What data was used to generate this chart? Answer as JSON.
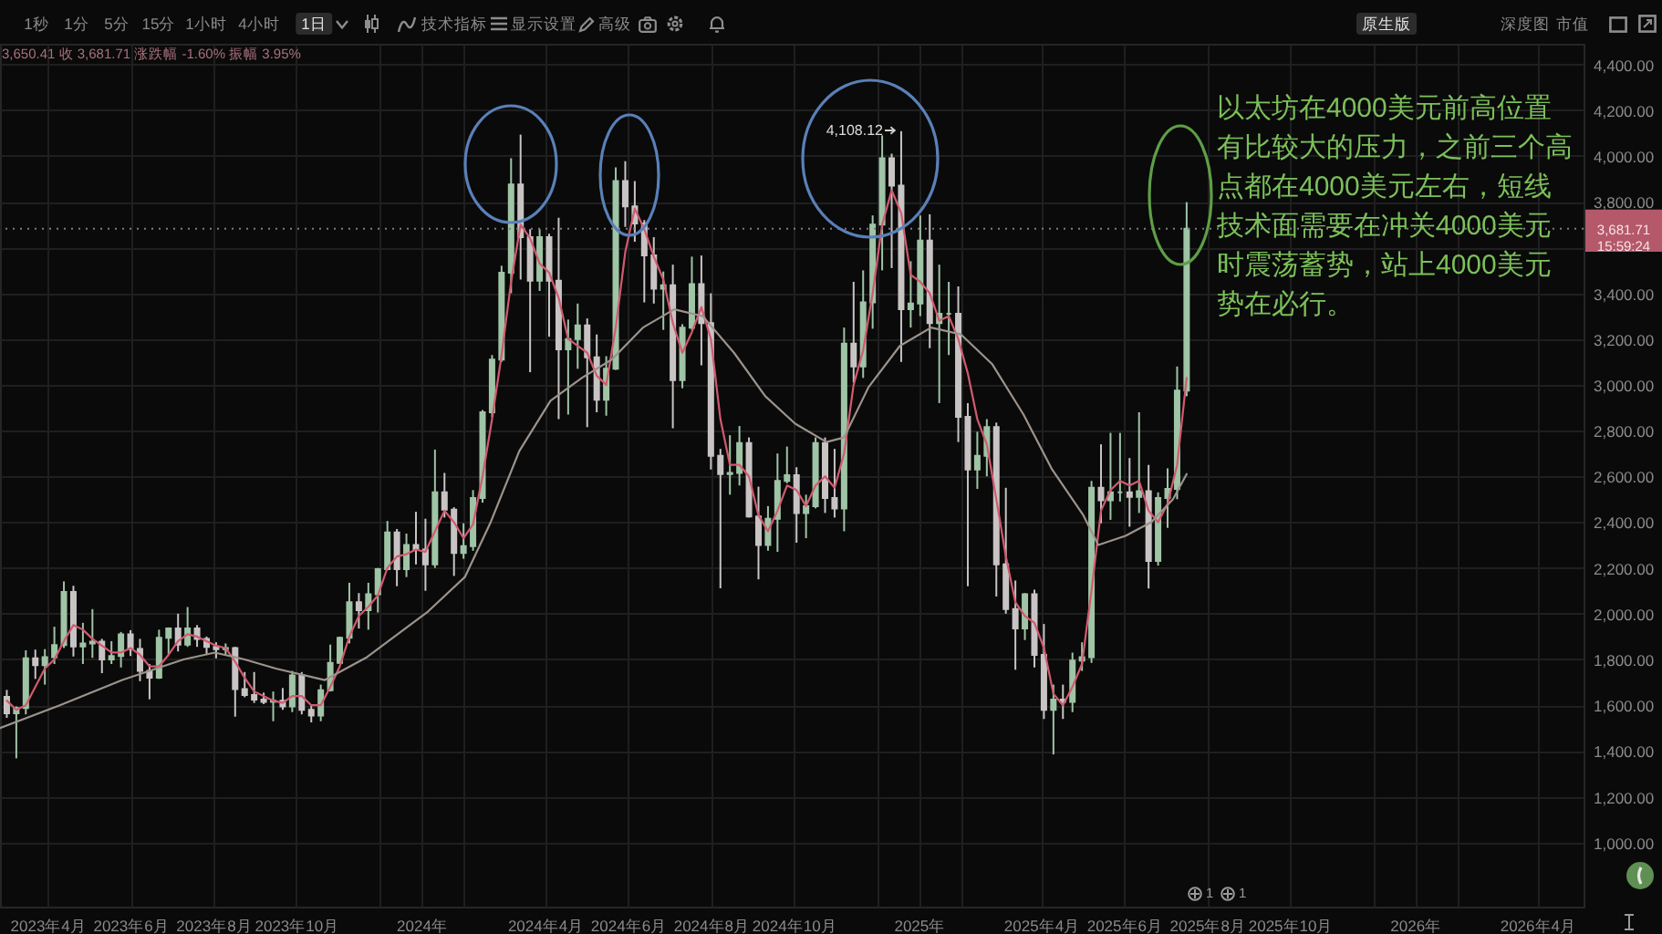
{
  "chart_data": {
    "type": "candlestick",
    "x": [
      "2023-03-02",
      "2023-03-09",
      "2023-03-16",
      "2023-03-23",
      "2023-03-30",
      "2023-04-06",
      "2023-04-13",
      "2023-04-20",
      "2023-04-27",
      "2023-05-04",
      "2023-05-11",
      "2023-05-18",
      "2023-05-25",
      "2023-06-01",
      "2023-06-08",
      "2023-06-15",
      "2023-06-22",
      "2023-06-29",
      "2023-07-06",
      "2023-07-13",
      "2023-07-20",
      "2023-07-27",
      "2023-08-03",
      "2023-08-10",
      "2023-08-17",
      "2023-08-24",
      "2023-08-31",
      "2023-09-07",
      "2023-09-14",
      "2023-09-21",
      "2023-09-28",
      "2023-10-05",
      "2023-10-12",
      "2023-10-19",
      "2023-10-26",
      "2023-11-02",
      "2023-11-09",
      "2023-11-16",
      "2023-11-23",
      "2023-11-30",
      "2023-12-07",
      "2023-12-14",
      "2023-12-21",
      "2023-12-28",
      "2024-01-04",
      "2024-01-11",
      "2024-01-18",
      "2024-01-25",
      "2024-02-01",
      "2024-02-08",
      "2024-02-15",
      "2024-02-22",
      "2024-02-29",
      "2024-03-07",
      "2024-03-14",
      "2024-03-21",
      "2024-03-28",
      "2024-04-04",
      "2024-04-11",
      "2024-04-18",
      "2024-04-25",
      "2024-05-02",
      "2024-05-09",
      "2024-05-16",
      "2024-05-23",
      "2024-05-30",
      "2024-06-06",
      "2024-06-13",
      "2024-06-20",
      "2024-06-27",
      "2024-07-04",
      "2024-07-11",
      "2024-07-18",
      "2024-07-25",
      "2024-08-01",
      "2024-08-08",
      "2024-08-15",
      "2024-08-22",
      "2024-08-29",
      "2024-09-05",
      "2024-09-12",
      "2024-09-19",
      "2024-09-26",
      "2024-10-03",
      "2024-10-10",
      "2024-10-17",
      "2024-10-24",
      "2024-10-31",
      "2024-11-07",
      "2024-11-14",
      "2024-11-21",
      "2024-11-28",
      "2024-12-05",
      "2024-12-12",
      "2024-12-19",
      "2024-12-26",
      "2025-01-02",
      "2025-01-09",
      "2025-01-16",
      "2025-01-23",
      "2025-01-30",
      "2025-02-06",
      "2025-02-13",
      "2025-02-20",
      "2025-02-27",
      "2025-03-06",
      "2025-03-13",
      "2025-03-20",
      "2025-03-27",
      "2025-04-03",
      "2025-04-10",
      "2025-04-17",
      "2025-04-24",
      "2025-05-01",
      "2025-05-08",
      "2025-05-15",
      "2025-05-22",
      "2025-05-29",
      "2025-06-05",
      "2025-06-12",
      "2025-06-19",
      "2025-06-26",
      "2025-07-03",
      "2025-07-10",
      "2025-07-17"
    ],
    "ohlc": [
      [
        1637,
        1667,
        1545,
        1565
      ],
      [
        1565,
        1595,
        1368,
        1588
      ],
      [
        1588,
        1840,
        1560,
        1805
      ],
      [
        1805,
        1843,
        1715,
        1775
      ],
      [
        1775,
        1845,
        1690,
        1810
      ],
      [
        1810,
        1943,
        1780,
        1863
      ],
      [
        1863,
        2141,
        1850,
        2095
      ],
      [
        2095,
        2122,
        1813,
        1857
      ],
      [
        1857,
        1960,
        1780,
        1870
      ],
      [
        1870,
        2020,
        1807,
        1878
      ],
      [
        1878,
        1890,
        1740,
        1800
      ],
      [
        1800,
        1880,
        1780,
        1815
      ],
      [
        1815,
        1920,
        1765,
        1910
      ],
      [
        1910,
        1928,
        1815,
        1846
      ],
      [
        1846,
        1890,
        1705,
        1750
      ],
      [
        1750,
        1780,
        1626,
        1720
      ],
      [
        1720,
        1930,
        1715,
        1895
      ],
      [
        1895,
        1940,
        1820,
        1935
      ],
      [
        1935,
        2000,
        1835,
        1865
      ],
      [
        1865,
        2029,
        1855,
        1935
      ],
      [
        1935,
        1950,
        1855,
        1890
      ],
      [
        1890,
        1900,
        1820,
        1855
      ],
      [
        1855,
        1875,
        1805,
        1845
      ],
      [
        1845,
        1870,
        1820,
        1850
      ],
      [
        1850,
        1855,
        1550,
        1670
      ],
      [
        1670,
        1745,
        1635,
        1645
      ],
      [
        1645,
        1745,
        1610,
        1625
      ],
      [
        1625,
        1655,
        1605,
        1615
      ],
      [
        1615,
        1660,
        1530,
        1620
      ],
      [
        1620,
        1675,
        1580,
        1595
      ],
      [
        1595,
        1750,
        1570,
        1730
      ],
      [
        1730,
        1745,
        1560,
        1580
      ],
      [
        1580,
        1600,
        1525,
        1555
      ],
      [
        1555,
        1690,
        1530,
        1665
      ],
      [
        1665,
        1865,
        1660,
        1785
      ],
      [
        1785,
        1900,
        1780,
        1895
      ],
      [
        1895,
        2135,
        1870,
        2050
      ],
      [
        2050,
        2090,
        1935,
        2015
      ],
      [
        2015,
        2135,
        1930,
        2085
      ],
      [
        2085,
        2200,
        2005,
        2195
      ],
      [
        2195,
        2405,
        2190,
        2355
      ],
      [
        2355,
        2370,
        2120,
        2195
      ],
      [
        2195,
        2350,
        2160,
        2300
      ],
      [
        2300,
        2445,
        2215,
        2280
      ],
      [
        2280,
        2415,
        2100,
        2215
      ],
      [
        2215,
        2717,
        2200,
        2530
      ],
      [
        2530,
        2615,
        2420,
        2455
      ],
      [
        2455,
        2465,
        2165,
        2265
      ],
      [
        2265,
        2395,
        2240,
        2295
      ],
      [
        2295,
        2540,
        2275,
        2505
      ],
      [
        2505,
        2890,
        2485,
        2880
      ],
      [
        2880,
        3130,
        2860,
        3110
      ],
      [
        3110,
        3520,
        3100,
        3490
      ],
      [
        3490,
        3990,
        3400,
        3875
      ],
      [
        3875,
        4093,
        3460,
        3645
      ],
      [
        3645,
        3680,
        3055,
        3455
      ],
      [
        3455,
        3680,
        3410,
        3645
      ],
      [
        3645,
        3660,
        3210,
        3455
      ],
      [
        3455,
        3730,
        2850,
        3155
      ],
      [
        3155,
        3285,
        2870,
        3200
      ],
      [
        3200,
        3355,
        3070,
        3260
      ],
      [
        3260,
        3290,
        2815,
        3120
      ],
      [
        3120,
        3220,
        2880,
        2935
      ],
      [
        2935,
        3125,
        2865,
        3070
      ],
      [
        3070,
        3950,
        3065,
        3890
      ],
      [
        3890,
        3977,
        3690,
        3780
      ],
      [
        3780,
        3890,
        3625,
        3705
      ],
      [
        3705,
        3720,
        3360,
        3565
      ],
      [
        3565,
        3645,
        3355,
        3420
      ],
      [
        3420,
        3495,
        3240,
        3435
      ],
      [
        3435,
        3525,
        2810,
        3020
      ],
      [
        3020,
        3265,
        2985,
        3250
      ],
      [
        3250,
        3560,
        3240,
        3440
      ],
      [
        3440,
        3565,
        3085,
        3270
      ],
      [
        3270,
        3400,
        2630,
        2690
      ],
      [
        2690,
        2720,
        2111,
        2610
      ],
      [
        2610,
        2780,
        2520,
        2615
      ],
      [
        2615,
        2820,
        2560,
        2745
      ],
      [
        2745,
        2770,
        2420,
        2425
      ],
      [
        2425,
        2555,
        2150,
        2300
      ],
      [
        2300,
        2470,
        2275,
        2415
      ],
      [
        2415,
        2700,
        2270,
        2580
      ],
      [
        2580,
        2730,
        2570,
        2605
      ],
      [
        2605,
        2640,
        2310,
        2440
      ],
      [
        2440,
        2520,
        2330,
        2470
      ],
      [
        2470,
        2770,
        2460,
        2745
      ],
      [
        2745,
        2770,
        2440,
        2505
      ],
      [
        2505,
        2720,
        2420,
        2460
      ],
      [
        2460,
        3250,
        2360,
        3180
      ],
      [
        3180,
        3450,
        3010,
        3080
      ],
      [
        3080,
        3500,
        3030,
        3360
      ],
      [
        3360,
        3740,
        3245,
        3700
      ],
      [
        3700,
        4090,
        3500,
        3990
      ],
      [
        3990,
        4010,
        3510,
        3870
      ],
      [
        3870,
        4108.12,
        3100,
        3330
      ],
      [
        3330,
        3540,
        3250,
        3355
      ],
      [
        3355,
        3740,
        3300,
        3630
      ],
      [
        3630,
        3745,
        3160,
        3270
      ],
      [
        3270,
        3525,
        2920,
        3310
      ],
      [
        3310,
        3450,
        3130,
        3310
      ],
      [
        3310,
        3430,
        2750,
        2860
      ],
      [
        2860,
        2920,
        2120,
        2630
      ],
      [
        2630,
        2795,
        2545,
        2690
      ],
      [
        2690,
        2850,
        2600,
        2815
      ],
      [
        2815,
        2835,
        2075,
        2215
      ],
      [
        2215,
        2550,
        2000,
        2020
      ],
      [
        2020,
        2145,
        1755,
        1935
      ],
      [
        1935,
        2090,
        1885,
        2085
      ],
      [
        2085,
        2105,
        1765,
        1820
      ],
      [
        1820,
        1955,
        1540,
        1580
      ],
      [
        1580,
        1690,
        1385,
        1625
      ],
      [
        1625,
        1690,
        1540,
        1615
      ],
      [
        1615,
        1830,
        1570,
        1795
      ],
      [
        1795,
        1875,
        1750,
        1810
      ],
      [
        1810,
        2580,
        1785,
        2550
      ],
      [
        2550,
        2740,
        2395,
        2495
      ],
      [
        2495,
        2790,
        2410,
        2530
      ],
      [
        2530,
        2790,
        2490,
        2530
      ],
      [
        2530,
        2680,
        2380,
        2510
      ],
      [
        2510,
        2880,
        2440,
        2535
      ],
      [
        2535,
        2650,
        2110,
        2230
      ],
      [
        2230,
        2530,
        2210,
        2505
      ],
      [
        2505,
        2635,
        2375,
        2545
      ],
      [
        2545,
        3080,
        2500,
        2975
      ],
      [
        2975,
        3798,
        2950,
        3681.71
      ]
    ],
    "colors": [
      "#c8c4c4",
      "#9fc4a6",
      "#9fc4a6",
      "#c8c4c4",
      "#9fc4a6",
      "#9fc4a6",
      "#9fc4a6",
      "#c8c4c4",
      "#9fc4a6",
      "#9fc4a6",
      "#c8c4c4",
      "#9fc4a6",
      "#9fc4a6",
      "#c8c4c4",
      "#c8c4c4",
      "#c8c4c4",
      "#9fc4a6",
      "#9fc4a6",
      "#c8c4c4",
      "#9fc4a6",
      "#c8c4c4",
      "#c8c4c4",
      "#c8c4c4",
      "#9fc4a6",
      "#c8c4c4",
      "#c8c4c4",
      "#c8c4c4",
      "#c8c4c4",
      "#9fc4a6",
      "#c8c4c4",
      "#9fc4a6",
      "#c8c4c4",
      "#c8c4c4",
      "#9fc4a6",
      "#9fc4a6",
      "#9fc4a6",
      "#9fc4a6",
      "#c8c4c4",
      "#9fc4a6",
      "#9fc4a6",
      "#9fc4a6",
      "#c8c4c4",
      "#9fc4a6",
      "#c8c4c4",
      "#c8c4c4",
      "#9fc4a6",
      "#c8c4c4",
      "#c8c4c4",
      "#9fc4a6",
      "#9fc4a6",
      "#9fc4a6",
      "#9fc4a6",
      "#9fc4a6",
      "#9fc4a6",
      "#c8c4c4",
      "#c8c4c4",
      "#9fc4a6",
      "#c8c4c4",
      "#c8c4c4",
      "#9fc4a6",
      "#9fc4a6",
      "#c8c4c4",
      "#c8c4c4",
      "#9fc4a6",
      "#9fc4a6",
      "#c8c4c4",
      "#c8c4c4",
      "#c8c4c4",
      "#c8c4c4",
      "#9fc4a6",
      "#c8c4c4",
      "#9fc4a6",
      "#9fc4a6",
      "#c8c4c4",
      "#c8c4c4",
      "#c8c4c4",
      "#9fc4a6",
      "#9fc4a6",
      "#c8c4c4",
      "#c8c4c4",
      "#9fc4a6",
      "#9fc4a6",
      "#9fc4a6",
      "#c8c4c4",
      "#9fc4a6",
      "#9fc4a6",
      "#c8c4c4",
      "#c8c4c4",
      "#9fc4a6",
      "#c8c4c4",
      "#9fc4a6",
      "#9fc4a6",
      "#9fc4a6",
      "#c8c4c4",
      "#c8c4c4",
      "#9fc4a6",
      "#9fc4a6",
      "#c8c4c4",
      "#9fc4a6",
      "#9fc4a6",
      "#c8c4c4",
      "#c8c4c4",
      "#9fc4a6",
      "#9fc4a6",
      "#c8c4c4",
      "#c8c4c4",
      "#c8c4c4",
      "#9fc4a6",
      "#c8c4c4",
      "#c8c4c4",
      "#9fc4a6",
      "#c8c4c4",
      "#9fc4a6",
      "#9fc4a6",
      "#9fc4a6",
      "#c8c4c4",
      "#9fc4a6",
      "#9fc4a6",
      "#c8c4c4",
      "#9fc4a6",
      "#c8c4c4",
      "#9fc4a6",
      "#9fc4a6",
      "#9fc4a6",
      "#9fc4a6"
    ],
    "series": [
      {
        "type": "line",
        "color": "#d25a6f",
        "values": [
          1620,
          1580,
          1600,
          1680,
          1760,
          1800,
          1880,
          1950,
          1930,
          1890,
          1860,
          1830,
          1830,
          1850,
          1820,
          1770,
          1770,
          1820,
          1880,
          1910,
          1900,
          1880,
          1860,
          1850,
          1790,
          1720,
          1660,
          1640,
          1620,
          1610,
          1640,
          1640,
          1600,
          1600,
          1680,
          1770,
          1900,
          1990,
          2030,
          2080,
          2200,
          2250,
          2260,
          2280,
          2270,
          2360,
          2450,
          2400,
          2330,
          2390,
          2600,
          2850,
          3130,
          3450,
          3700,
          3640,
          3530,
          3490,
          3380,
          3200,
          3170,
          3140,
          3040,
          3000,
          3250,
          3580,
          3770,
          3680,
          3560,
          3460,
          3270,
          3140,
          3230,
          3340,
          3200,
          2850,
          2650,
          2650,
          2600,
          2430,
          2360,
          2450,
          2560,
          2540,
          2470,
          2560,
          2600,
          2550,
          2700,
          3000,
          3150,
          3400,
          3700,
          3850,
          3750,
          3480,
          3450,
          3400,
          3280,
          3300,
          3200,
          3050,
          2850,
          2740,
          2500,
          2250,
          2050,
          1990,
          1960,
          1850,
          1650,
          1600,
          1680,
          1780,
          2100,
          2450,
          2540,
          2580,
          2560,
          2580,
          2450,
          2400,
          2480,
          2650,
          3030
        ]
      },
      {
        "type": "line",
        "color": "#9c938b",
        "x": [
          "2023-02-25",
          "2023-04-10",
          "2023-05-26",
          "2023-07-10",
          "2023-08-02",
          "2023-08-24",
          "2023-09-16",
          "2023-10-22",
          "2023-11-22",
          "2024-01-06",
          "2024-02-02",
          "2024-02-21",
          "2024-03-13",
          "2024-04-05",
          "2024-04-28",
          "2024-05-20",
          "2024-06-12",
          "2024-07-05",
          "2024-07-26",
          "2024-08-18",
          "2024-09-10",
          "2024-10-02",
          "2024-10-25",
          "2024-11-07",
          "2024-11-25",
          "2024-12-18",
          "2025-01-10",
          "2025-02-01",
          "2025-02-24",
          "2025-03-19",
          "2025-04-09",
          "2025-05-02",
          "2025-05-13",
          "2025-06-02",
          "2025-06-21",
          "2025-07-07",
          "2025-07-17"
        ],
        "values": [
          1500,
          1600,
          1710,
          1800,
          1830,
          1800,
          1760,
          1710,
          1810,
          2010,
          2160,
          2400,
          2710,
          2930,
          3030,
          3110,
          3250,
          3330,
          3300,
          3140,
          2950,
          2830,
          2750,
          2770,
          2990,
          3170,
          3250,
          3220,
          3090,
          2870,
          2630,
          2430,
          2300,
          2340,
          2400,
          2500,
          2610
        ]
      }
    ],
    "xlim": [
      "2023-02-25",
      "2026-05-05"
    ],
    "ylim": [
      720,
      4490
    ],
    "xticks": [
      {
        "value": "2023-04",
        "label": "2023年4月"
      },
      {
        "value": "2023-06",
        "label": "2023年6月"
      },
      {
        "value": "2023-08",
        "label": "2023年8月"
      },
      {
        "value": "2023-10",
        "label": "2023年10月"
      },
      {
        "value": "2023-12",
        "label": null
      },
      {
        "value": "2024",
        "label": "2024年"
      },
      {
        "value": "2024-02",
        "label": null
      },
      {
        "value": "2024-04",
        "label": "2024年4月"
      },
      {
        "value": "2024-06",
        "label": "2024年6月"
      },
      {
        "value": "2024-08",
        "label": "2024年8月"
      },
      {
        "value": "2024-10",
        "label": "2024年10月"
      },
      {
        "value": "2024-12",
        "label": null
      },
      {
        "value": "2025",
        "label": "2025年"
      },
      {
        "value": "2025-02",
        "label": null
      },
      {
        "value": "2025-04",
        "label": "2025年4月"
      },
      {
        "value": "2025-06",
        "label": "2025年6月"
      },
      {
        "value": "2025-08",
        "label": "2025年8月"
      },
      {
        "value": "2025-10",
        "label": "2025年10月"
      },
      {
        "value": "2025-12",
        "label": null
      },
      {
        "value": "2026",
        "label": "2026年"
      },
      {
        "value": "2026-02",
        "label": null
      },
      {
        "value": "2026-04",
        "label": "2026年4月"
      }
    ],
    "yticks": [
      {
        "value": 1000,
        "label": "1,000.00"
      },
      {
        "value": 1200,
        "label": "1,200.00"
      },
      {
        "value": 1400,
        "label": "1,400.00"
      },
      {
        "value": 1600,
        "label": "1,600.00"
      },
      {
        "value": 1800,
        "label": "1,800.00"
      },
      {
        "value": 2000,
        "label": "2,000.00"
      },
      {
        "value": 2200,
        "label": "2,200.00"
      },
      {
        "value": 2400,
        "label": "2,400.00"
      },
      {
        "value": 2600,
        "label": "2,600.00"
      },
      {
        "value": 2800,
        "label": "2,800.00"
      },
      {
        "value": 3000,
        "label": "3,000.00"
      },
      {
        "value": 3200,
        "label": "3,200.00"
      },
      {
        "value": 3400,
        "label": "3,400.00"
      },
      {
        "value": 3600,
        "label": null
      },
      {
        "value": 3800,
        "label": "3,800.00"
      },
      {
        "value": 4000,
        "label": "4,000.00"
      },
      {
        "value": 4200,
        "label": "4,200.00"
      },
      {
        "value": 4400,
        "label": "4,400.00"
      }
    ],
    "grid": true,
    "ref_lines": [
      {
        "axis": "y",
        "value": 3681.71,
        "label": "3,681.71\n15:59:24",
        "color": "#7c7c7c",
        "line_style": "dotted"
      }
    ],
    "annotations": [
      "以太坊在4000美元前高位置有比较大的压力，之前三个高点都在4000美元左右，短线技术面需要在冲关4000美元时震荡蓄势，站上4000美元势在必行。",
      {
        "text": "4,108.12",
        "x": "2024-12-19",
        "y": 4108.12
      },
      "3,650.41 收 3,681.71 涨跌幅 -1.60% 振幅 3.95%",
      "1秒",
      "1分",
      "5分",
      "15分",
      "1小时",
      "4小时",
      "1日",
      "技术指标",
      "显示设置",
      "高级",
      "原生版",
      "深度图",
      "市值",
      "1",
      "1"
    ]
  }
}
